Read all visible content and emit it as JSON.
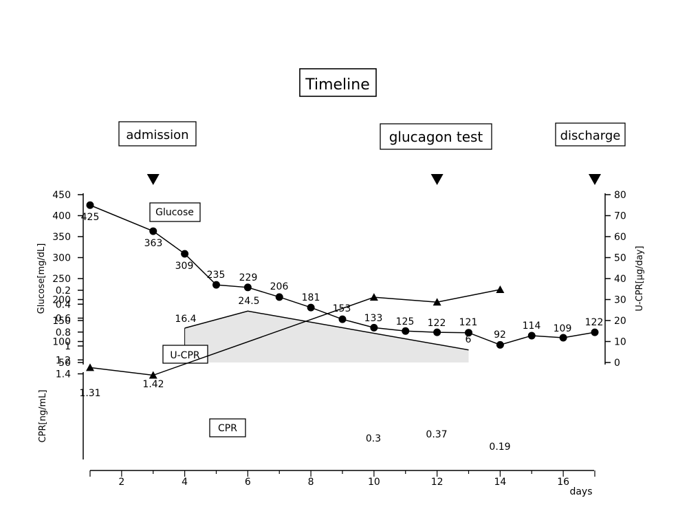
{
  "chart_data": [
    {
      "type": "line",
      "title": "Timeline",
      "xlabel": "days",
      "events": [
        {
          "label": "admission",
          "day": 3
        },
        {
          "label": "glucagon test",
          "day": 12
        },
        {
          "label": "discharge",
          "day": 17
        }
      ],
      "x_ticks": [
        2,
        4,
        6,
        8,
        10,
        12,
        14,
        16
      ],
      "xlim": [
        1,
        17
      ],
      "ylabel": "Glucose[mg/dL]",
      "ylim": [
        50,
        450
      ],
      "y_ticks": [
        50,
        100,
        150,
        200,
        250,
        300,
        350,
        400,
        450
      ],
      "y2label": "U-CPR[µg/day]",
      "y2lim": [
        0,
        80
      ],
      "y2_ticks": [
        0,
        10,
        20,
        30,
        40,
        50,
        60,
        70,
        80
      ],
      "series": [
        {
          "name": "Glucose",
          "style": "line-circle",
          "axis": "left",
          "x": [
            1,
            3,
            4,
            5,
            6,
            7,
            8,
            9,
            10,
            11,
            12,
            13,
            14,
            15,
            16,
            17
          ],
          "values": [
            425,
            363,
            309,
            235,
            229,
            206,
            181,
            153,
            133,
            125,
            122,
            121,
            92,
            114,
            109,
            122
          ]
        },
        {
          "name": "U-CPR",
          "style": "area",
          "axis": "right",
          "fill": "#e6e6e6",
          "x": [
            4,
            6,
            13
          ],
          "values": [
            16.4,
            24.5,
            6
          ]
        }
      ]
    },
    {
      "type": "line",
      "xlabel": "days",
      "ylabel": "CPR[ng/mL]",
      "ylim": [
        0.2,
        1.4
      ],
      "y_ticks": [
        0.2,
        0.4,
        0.6,
        0.8,
        1,
        1.2,
        1.4
      ],
      "series": [
        {
          "name": "CPR",
          "style": "line-triangle",
          "x": [
            1,
            3,
            10,
            12,
            14
          ],
          "values": [
            1.31,
            1.42,
            0.3,
            0.37,
            0.19
          ]
        }
      ]
    }
  ]
}
